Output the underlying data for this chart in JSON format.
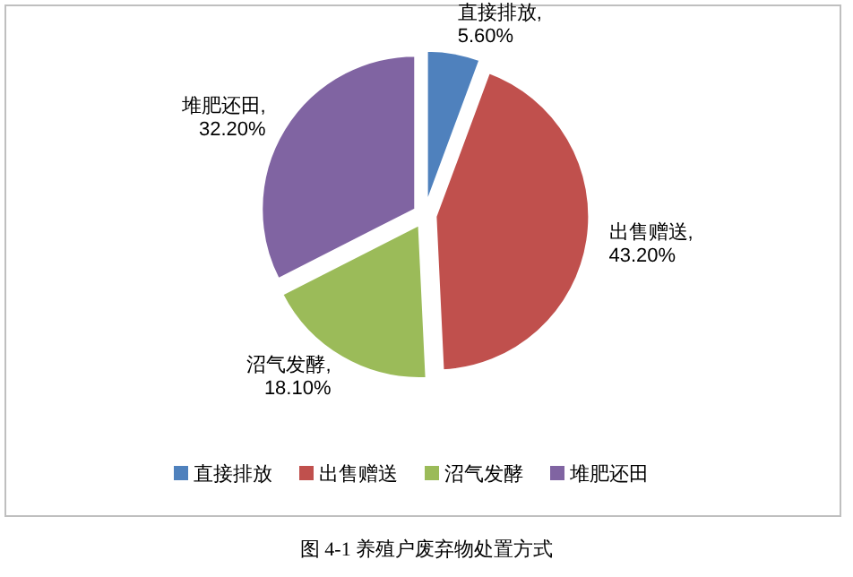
{
  "chart_data": {
    "type": "pie",
    "categories": [
      "直接排放",
      "出售赠送",
      "沼气发酵",
      "堆肥还田"
    ],
    "values": [
      5.6,
      43.2,
      18.1,
      32.2
    ],
    "value_labels": [
      "直接排放,\n5.60%",
      "出售赠送,\n43.20%",
      "沼气发酵,\n18.10%",
      "堆肥还田,\n32.20%"
    ],
    "colors": [
      "#4f81bd",
      "#c0504d",
      "#9bbb59",
      "#8064a2"
    ],
    "legend": "bottom",
    "annotations": [
      "图 4-1 养殖户废弃物处置方式"
    ]
  }
}
